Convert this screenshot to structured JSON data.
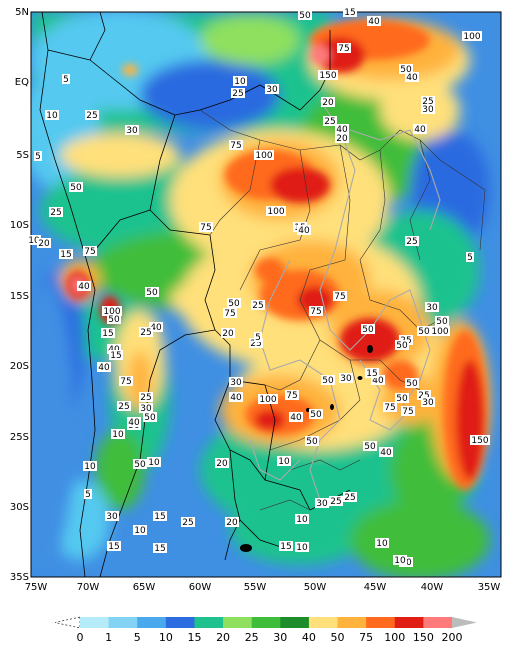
{
  "map": {
    "lon_labels": [
      "75W",
      "70W",
      "65W",
      "60W",
      "55W",
      "50W",
      "45W",
      "40W",
      "35W"
    ],
    "lat_labels": [
      "5N",
      "EQ",
      "5S",
      "10S",
      "15S",
      "20S",
      "25S",
      "30S",
      "35S"
    ],
    "contour_labels": [
      "50",
      "15",
      "40",
      "100",
      "75",
      "150",
      "50",
      "40",
      "20",
      "5",
      "5",
      "10",
      "25",
      "30",
      "10",
      "25",
      "30",
      "75",
      "100",
      "25",
      "40",
      "20",
      "25",
      "30",
      "40",
      "50",
      "75",
      "100",
      "15",
      "40",
      "25",
      "10",
      "20",
      "15",
      "75",
      "40",
      "5",
      "25",
      "50",
      "100",
      "50",
      "15",
      "40",
      "40",
      "25",
      "75",
      "25",
      "50",
      "75",
      "30",
      "50",
      "100",
      "75",
      "50",
      "20",
      "25",
      "5",
      "30",
      "40",
      "100",
      "50",
      "30",
      "25",
      "50",
      "40",
      "50",
      "15",
      "50",
      "75",
      "50",
      "50",
      "75",
      "25",
      "30",
      "75",
      "40",
      "50",
      "10",
      "50",
      "10",
      "50",
      "25",
      "30",
      "25",
      "40",
      "15",
      "75",
      "40",
      "10",
      "50",
      "150",
      "40",
      "50",
      "10",
      "20",
      "5",
      "30",
      "15",
      "25",
      "20",
      "10",
      "15",
      "10",
      "10",
      "20",
      "15",
      "10",
      "15",
      "30",
      "25",
      "25",
      "10"
    ],
    "colorbar_labels": [
      "0",
      "1",
      "5",
      "10",
      "15",
      "20",
      "25",
      "30",
      "40",
      "50",
      "75",
      "100",
      "150",
      "200"
    ],
    "colorbar_colors": [
      "#ffffff",
      "#b6ecfa",
      "#82d3f4",
      "#4aa8ec",
      "#2c6be0",
      "#1fc28e",
      "#8fe05f",
      "#3fbd3a",
      "#1e8c2a",
      "#ffe07a",
      "#ffb23c",
      "#ff6a1e",
      "#e01e14",
      "#ff7a7a",
      "#bcbcbc"
    ]
  }
}
